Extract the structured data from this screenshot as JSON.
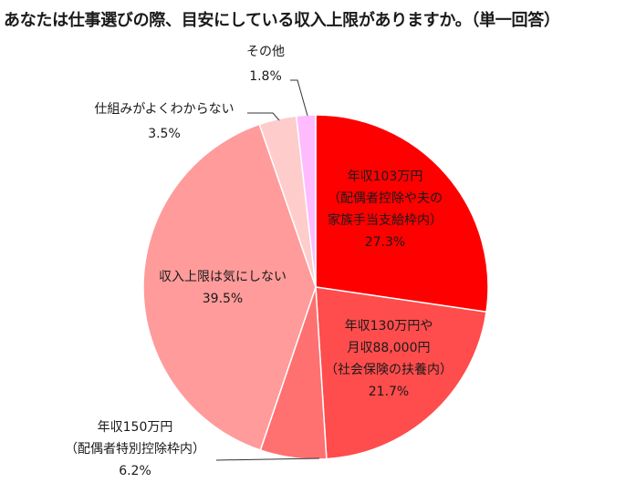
{
  "chart_data": {
    "type": "pie",
    "title": "あなたは仕事選びの際、目安にしている収入上限がありますか。（単一回答）",
    "start": "12 o'clock",
    "direction": "clockwise",
    "slices": [
      {
        "label_lines": [
          "年収103万円",
          "（配偶者控除や夫の",
          "家族手当支給枠内）"
        ],
        "value": 27.3,
        "value_label": "27.3%",
        "color": "#ff0000"
      },
      {
        "label_lines": [
          "年収130万円や",
          "月収88,000円",
          "（社会保険の扶養内）"
        ],
        "value": 21.7,
        "value_label": "21.7%",
        "color": "#ff4c4c"
      },
      {
        "label_lines": [
          "年収150万円",
          "（配偶者特別控除枠内）"
        ],
        "value": 6.2,
        "value_label": "6.2%",
        "color": "#ff7070"
      },
      {
        "label_lines": [
          "収入上限は気にしない"
        ],
        "value": 39.5,
        "value_label": "39.5%",
        "color": "#ff9b9b"
      },
      {
        "label_lines": [
          "仕組みがよくわからない"
        ],
        "value": 3.5,
        "value_label": "3.5%",
        "color": "#ffcccc"
      },
      {
        "label_lines": [
          "その他"
        ],
        "value": 1.8,
        "value_label": "1.8%",
        "color": "#ffbbff"
      }
    ]
  }
}
